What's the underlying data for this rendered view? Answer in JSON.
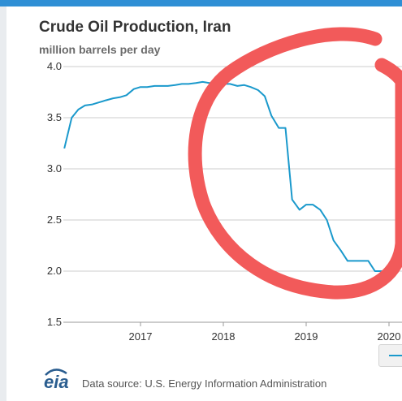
{
  "header": {
    "title": "Crude Oil Production, Iran",
    "subtitle": "million barrels per day"
  },
  "footer": {
    "logo_text": "eia",
    "source": "Data source: U.S. Energy Information Administration"
  },
  "colors": {
    "series": "#1a99cc",
    "grid": "#cccccc",
    "annotation": "#f25a5a",
    "header_bar": "#2f8fd5"
  },
  "chart_data": {
    "type": "line",
    "title": "Crude Oil Production, Iran",
    "ylabel": "million barrels per day",
    "xlabel": "",
    "ylim": [
      1.5,
      4.0
    ],
    "xlim": [
      2016.08,
      2020.16
    ],
    "yticks": [
      "4.0",
      "3.5",
      "3.0",
      "2.5",
      "2.0",
      "1.5"
    ],
    "xticks": [
      "2017",
      "2018",
      "2019",
      "2020"
    ],
    "grid": true,
    "legend": "bottom-right",
    "series": [
      {
        "x": [
          2016.08,
          2016.17,
          2016.25,
          2016.33,
          2016.42,
          2016.5,
          2016.58,
          2016.67,
          2016.75,
          2016.83,
          2016.92,
          2017.0,
          2017.08,
          2017.17,
          2017.25,
          2017.33,
          2017.42,
          2017.5,
          2017.58,
          2017.67,
          2017.75,
          2017.83,
          2017.92,
          2018.0,
          2018.08,
          2018.17,
          2018.25,
          2018.33,
          2018.42,
          2018.5,
          2018.58,
          2018.67,
          2018.75,
          2018.83,
          2018.92,
          2019.0,
          2019.08,
          2019.17,
          2019.25,
          2019.33,
          2019.42,
          2019.5,
          2019.58,
          2019.67,
          2019.75,
          2019.83,
          2019.92,
          2020.0
        ],
        "values": [
          3.2,
          3.5,
          3.58,
          3.62,
          3.63,
          3.65,
          3.67,
          3.69,
          3.7,
          3.72,
          3.78,
          3.8,
          3.8,
          3.81,
          3.81,
          3.81,
          3.82,
          3.83,
          3.83,
          3.84,
          3.85,
          3.84,
          3.84,
          3.83,
          3.83,
          3.81,
          3.82,
          3.8,
          3.77,
          3.71,
          3.52,
          3.4,
          3.4,
          2.7,
          2.6,
          2.65,
          2.65,
          2.6,
          2.5,
          2.3,
          2.2,
          2.1,
          2.1,
          2.1,
          2.1,
          2.0,
          2.0,
          2.0
        ]
      }
    ]
  }
}
